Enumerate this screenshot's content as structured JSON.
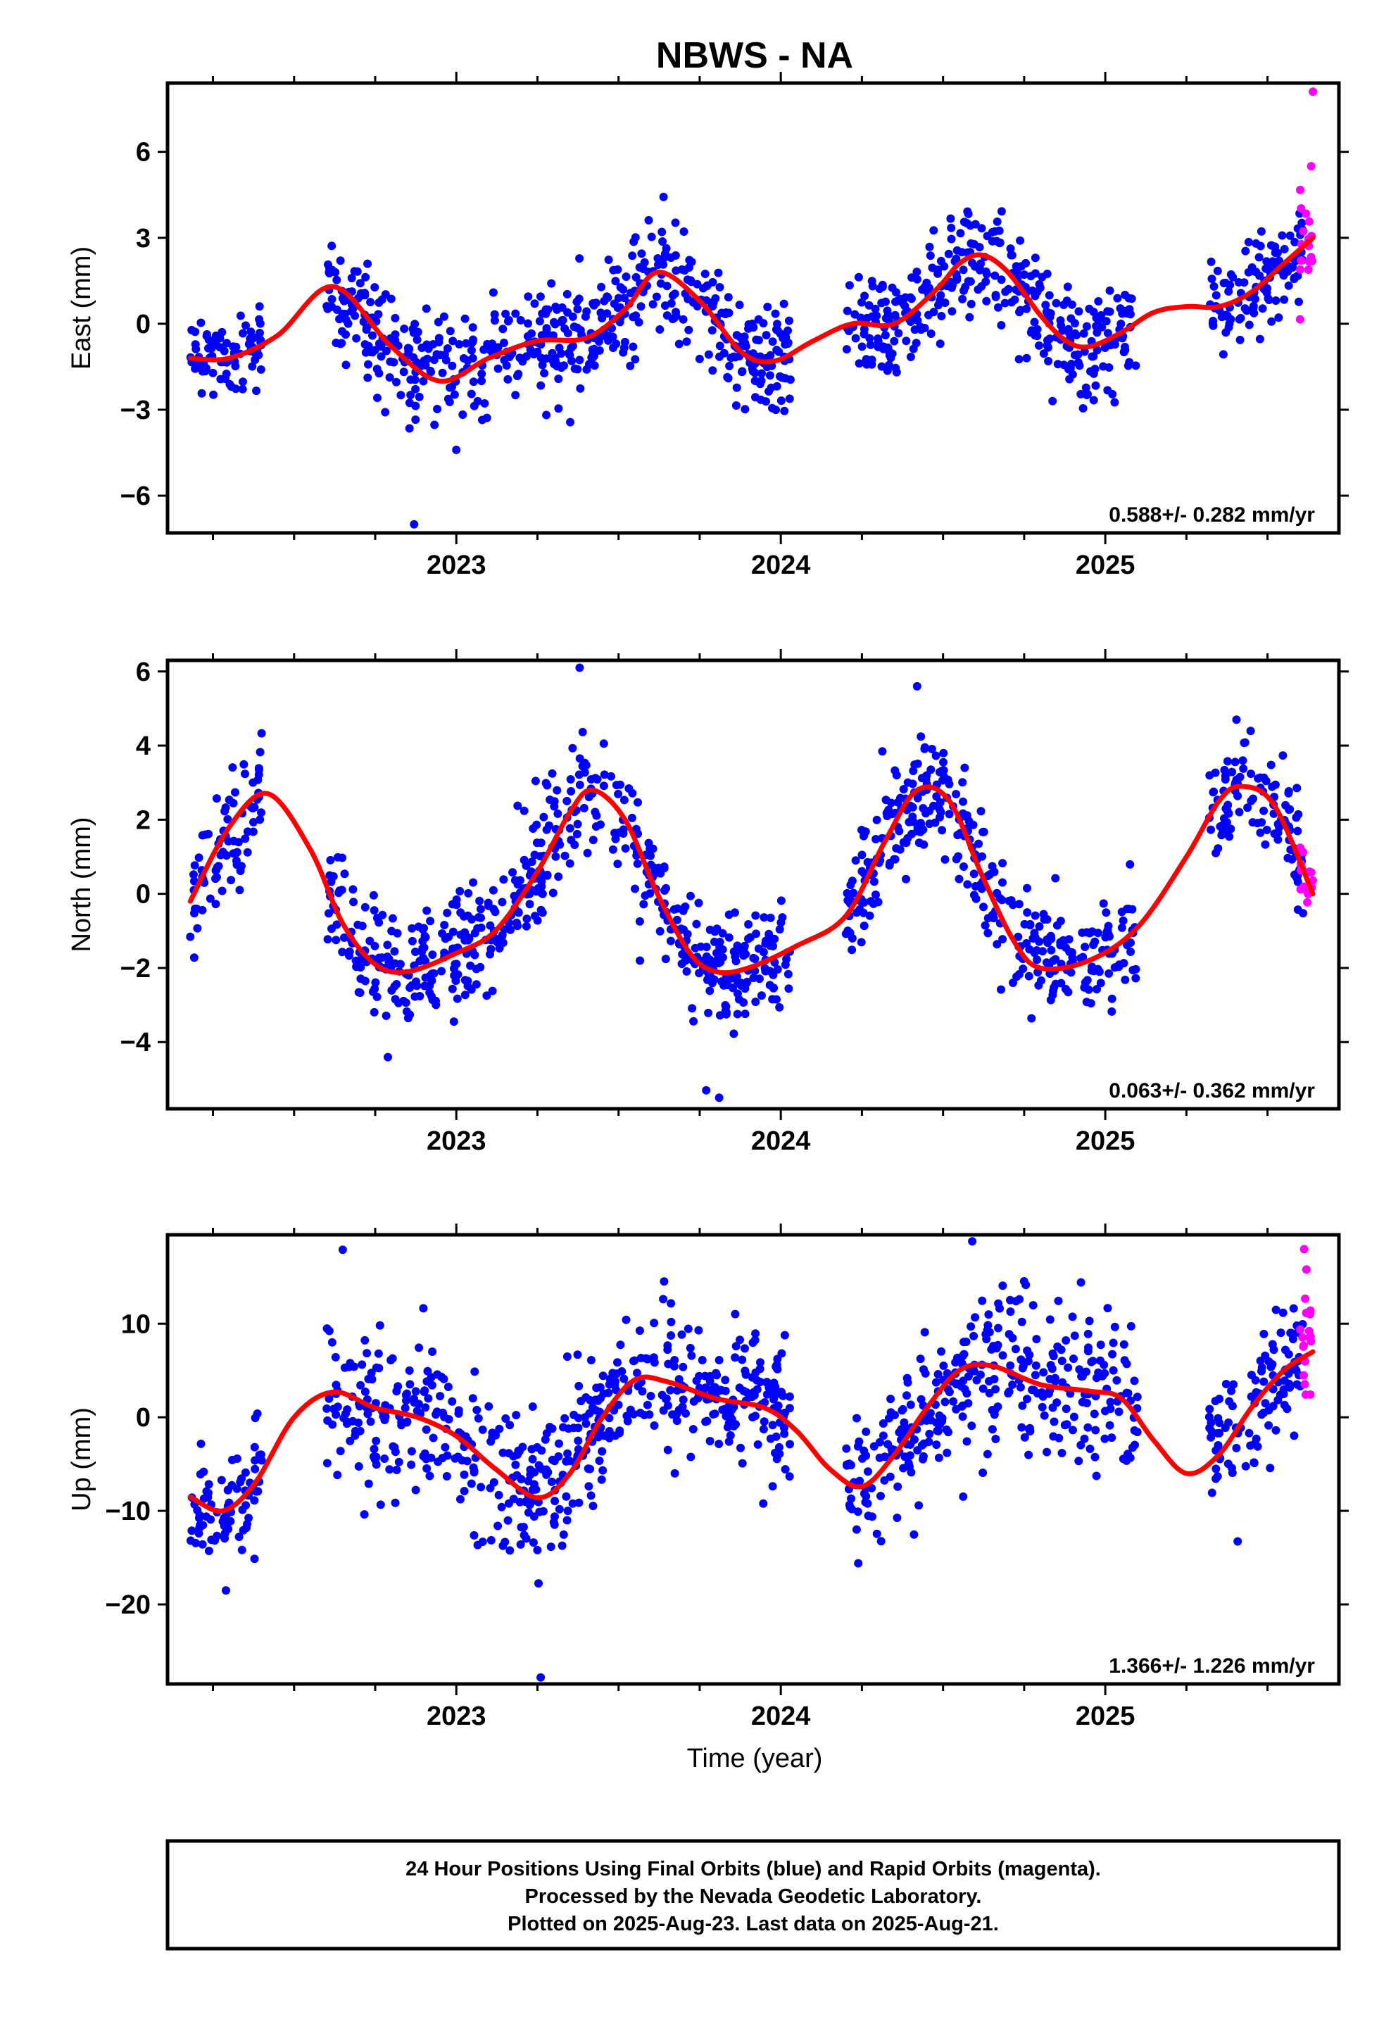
{
  "title": "NBWS - NA",
  "xlabel": "Time (year)",
  "footer": {
    "line1": "24 Hour Positions Using Final Orbits (blue) and Rapid Orbits (magenta).",
    "line2": "Processed by the Nevada Geodetic Laboratory.",
    "line3": "Plotted on 2025-Aug-23. Last data on 2025-Aug-21."
  },
  "colors": {
    "final": "#0000ff",
    "rapid": "#ff00ff",
    "fit": "#ff0000",
    "frame": "#000000"
  },
  "chart_data": [
    {
      "type": "scatter",
      "ylabel": "East (mm)",
      "rate": "0.588+/- 0.282 mm/yr",
      "xlim": [
        2022.11,
        2025.72
      ],
      "ylim": [
        -7.3,
        8.4
      ],
      "xticks": [
        2023,
        2024,
        2025
      ],
      "xtick_labels": [
        "2023",
        "2024",
        "2025"
      ],
      "yticks": [
        -6,
        -3,
        0,
        3,
        6
      ],
      "ytick_labels": [
        "−6",
        "−3",
        "0",
        "3",
        "6"
      ],
      "fit_line": {
        "x": [
          2022.18,
          2022.3,
          2022.45,
          2022.62,
          2022.8,
          2022.95,
          2023.1,
          2023.25,
          2023.4,
          2023.52,
          2023.62,
          2023.75,
          2023.88,
          2023.98,
          2024.1,
          2024.22,
          2024.35,
          2024.48,
          2024.55,
          2024.62,
          2024.7,
          2024.8,
          2024.88,
          2024.95,
          2025.05,
          2025.15,
          2025.25,
          2025.35,
          2025.45,
          2025.55,
          2025.64
        ],
        "y": [
          -1.2,
          -1.2,
          -0.4,
          1.3,
          -0.8,
          -2.0,
          -1.2,
          -0.6,
          -0.5,
          0.5,
          1.8,
          0.8,
          -1.0,
          -1.3,
          -0.6,
          0.0,
          0.0,
          1.2,
          2.1,
          2.4,
          1.8,
          0.3,
          -0.6,
          -0.8,
          -0.3,
          0.4,
          0.6,
          0.6,
          1.1,
          2.1,
          3.0
        ]
      },
      "final": [
        {
          "start": 2022.18,
          "end": 2022.4,
          "n": 80,
          "sd": 0.7
        },
        {
          "start": 2022.6,
          "end": 2023.68,
          "n": 400,
          "sd": 1.0
        },
        {
          "start": 2023.68,
          "end": 2024.03,
          "n": 150,
          "sd": 0.9
        },
        {
          "start": 2024.2,
          "end": 2024.98,
          "n": 300,
          "sd": 1.0
        },
        {
          "start": 2024.98,
          "end": 2025.1,
          "n": 40,
          "sd": 1.0
        },
        {
          "start": 2025.32,
          "end": 2025.61,
          "n": 110,
          "sd": 0.8
        }
      ],
      "rapid": {
        "start": 2025.6,
        "end": 2025.64,
        "n": 18,
        "sd": 1.3
      },
      "outliers": [
        {
          "x": 2022.87,
          "y": -7.0
        },
        {
          "x": 2023.0,
          "y": -4.4
        },
        {
          "x": 2025.64,
          "y": 8.1
        }
      ]
    },
    {
      "type": "scatter",
      "ylabel": "North (mm)",
      "rate": "0.063+/- 0.362 mm/yr",
      "xlim": [
        2022.11,
        2025.72
      ],
      "ylim": [
        -5.8,
        6.3
      ],
      "xticks": [
        2023,
        2024,
        2025
      ],
      "xtick_labels": [
        "2023",
        "2024",
        "2025"
      ],
      "yticks": [
        -4,
        -2,
        0,
        2,
        4,
        6
      ],
      "ytick_labels": [
        "−4",
        "−2",
        "0",
        "2",
        "4",
        "6"
      ],
      "fit_line": {
        "x": [
          2022.18,
          2022.3,
          2022.42,
          2022.55,
          2022.65,
          2022.75,
          2022.85,
          2023.0,
          2023.12,
          2023.25,
          2023.35,
          2023.42,
          2023.52,
          2023.62,
          2023.72,
          2023.8,
          2023.9,
          2024.05,
          2024.2,
          2024.32,
          2024.42,
          2024.52,
          2024.62,
          2024.72,
          2024.8,
          2024.95,
          2025.1,
          2025.25,
          2025.35,
          2025.42,
          2025.52,
          2025.64
        ],
        "y": [
          -0.2,
          1.8,
          2.7,
          1.2,
          -0.8,
          -1.9,
          -2.1,
          -1.6,
          -1.0,
          0.6,
          2.2,
          2.8,
          2.0,
          0.0,
          -1.6,
          -2.1,
          -2.0,
          -1.4,
          -0.6,
          1.4,
          2.8,
          2.5,
          0.5,
          -1.3,
          -2.0,
          -1.8,
          -0.9,
          1.0,
          2.5,
          2.9,
          2.4,
          0.0
        ]
      },
      "final": [
        {
          "start": 2022.18,
          "end": 2022.4,
          "n": 80,
          "sd": 0.8
        },
        {
          "start": 2022.6,
          "end": 2023.68,
          "n": 400,
          "sd": 0.8
        },
        {
          "start": 2023.68,
          "end": 2024.03,
          "n": 150,
          "sd": 0.7
        },
        {
          "start": 2024.2,
          "end": 2024.98,
          "n": 300,
          "sd": 0.8
        },
        {
          "start": 2024.98,
          "end": 2025.1,
          "n": 40,
          "sd": 0.8
        },
        {
          "start": 2025.32,
          "end": 2025.61,
          "n": 110,
          "sd": 0.8
        }
      ],
      "rapid": {
        "start": 2025.6,
        "end": 2025.64,
        "n": 18,
        "sd": 0.5
      },
      "outliers": [
        {
          "x": 2023.38,
          "y": 6.1
        },
        {
          "x": 2023.77,
          "y": -5.3
        },
        {
          "x": 2023.81,
          "y": -5.5
        },
        {
          "x": 2024.42,
          "y": 5.6
        }
      ]
    },
    {
      "type": "scatter",
      "ylabel": "Up (mm)",
      "rate": "1.366+/- 1.226 mm/yr",
      "xlim": [
        2022.11,
        2025.72
      ],
      "ylim": [
        -28.5,
        19.5
      ],
      "xticks": [
        2023,
        2024,
        2025
      ],
      "xtick_labels": [
        "2023",
        "2024",
        "2025"
      ],
      "yticks": [
        -20,
        -10,
        0,
        10
      ],
      "ytick_labels": [
        "−20",
        "−10",
        "0",
        "10"
      ],
      "fit_line": {
        "x": [
          2022.18,
          2022.28,
          2022.38,
          2022.5,
          2022.62,
          2022.75,
          2022.88,
          2023.0,
          2023.12,
          2023.25,
          2023.35,
          2023.45,
          2023.55,
          2023.65,
          2023.8,
          2023.95,
          2024.05,
          2024.15,
          2024.25,
          2024.35,
          2024.45,
          2024.55,
          2024.65,
          2024.8,
          2024.95,
          2025.05,
          2025.15,
          2025.25,
          2025.35,
          2025.45,
          2025.55,
          2025.64
        ],
        "y": [
          -8.5,
          -10.0,
          -7.0,
          0.0,
          2.7,
          1.0,
          0.0,
          -2.0,
          -5.5,
          -8.6,
          -6.0,
          0.0,
          4.0,
          3.8,
          2.0,
          1.0,
          -1.5,
          -5.5,
          -7.4,
          -4.0,
          1.0,
          5.0,
          5.5,
          3.5,
          2.8,
          2.0,
          -2.5,
          -6.0,
          -4.0,
          1.0,
          5.0,
          7.0
        ]
      },
      "final": [
        {
          "start": 2022.18,
          "end": 2022.4,
          "n": 80,
          "sd": 3.0
        },
        {
          "start": 2022.6,
          "end": 2023.68,
          "n": 400,
          "sd": 4.0
        },
        {
          "start": 2023.68,
          "end": 2024.03,
          "n": 150,
          "sd": 3.5
        },
        {
          "start": 2024.2,
          "end": 2024.98,
          "n": 300,
          "sd": 4.0
        },
        {
          "start": 2024.98,
          "end": 2025.1,
          "n": 40,
          "sd": 4.0
        },
        {
          "start": 2025.32,
          "end": 2025.61,
          "n": 110,
          "sd": 3.5
        }
      ],
      "rapid": {
        "start": 2025.6,
        "end": 2025.64,
        "n": 18,
        "sd": 5.5
      },
      "outliers": [
        {
          "x": 2022.65,
          "y": 17.9
        },
        {
          "x": 2023.26,
          "y": -27.8
        },
        {
          "x": 2024.59,
          "y": 18.8
        },
        {
          "x": 2025.62,
          "y": 15.8
        },
        {
          "x": 2022.29,
          "y": -18.5
        }
      ]
    }
  ]
}
